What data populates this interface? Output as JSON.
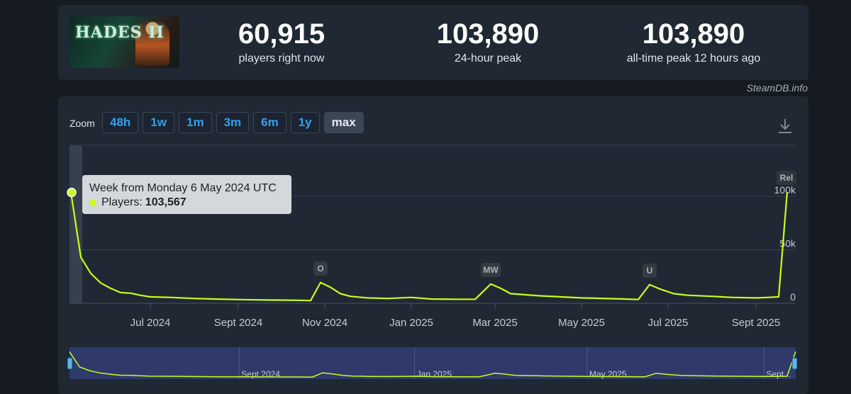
{
  "game": {
    "title": "HADES II"
  },
  "stats": [
    {
      "value": "60,915",
      "label": "players right now"
    },
    {
      "value": "103,890",
      "label": "24-hour peak"
    },
    {
      "value": "103,890",
      "label": "all-time peak 12 hours ago"
    }
  ],
  "watermark": "SteamDB.info",
  "zoom": {
    "label": "Zoom",
    "buttons": [
      "48h",
      "1w",
      "1m",
      "3m",
      "6m",
      "1y",
      "max"
    ],
    "active": "max"
  },
  "colors": {
    "line": "#c6ff1c",
    "accent": "#30a2f0",
    "navigator_bg": "#2f3a6b",
    "event_flag": "#353b40"
  },
  "tooltip": {
    "title": "Week from Monday 6 May 2024 UTC",
    "series_label": "Players:",
    "value": "103,567"
  },
  "chart_data": {
    "type": "line",
    "title": "",
    "xlabel": "",
    "ylabel": "",
    "ylim": [
      0,
      140000
    ],
    "y_ticks": [
      {
        "value": 0,
        "label": "0"
      },
      {
        "value": 50000,
        "label": "50k"
      },
      {
        "value": 100000,
        "label": "100k"
      }
    ],
    "x_ticks": [
      {
        "date": "2024-07-01",
        "label": "Jul 2024"
      },
      {
        "date": "2024-09-01",
        "label": "Sept 2024"
      },
      {
        "date": "2024-11-01",
        "label": "Nov 2024"
      },
      {
        "date": "2025-01-01",
        "label": "Jan 2025"
      },
      {
        "date": "2025-03-01",
        "label": "Mar 2025"
      },
      {
        "date": "2025-05-01",
        "label": "May 2025"
      },
      {
        "date": "2025-07-01",
        "label": "Jul 2025"
      },
      {
        "date": "2025-09-01",
        "label": "Sept 2025"
      }
    ],
    "grid": true,
    "series": [
      {
        "values": [
          [
            "2024-05-06",
            103567
          ],
          [
            "2024-05-13",
            43000
          ],
          [
            "2024-05-20",
            28000
          ],
          [
            "2024-05-27",
            19000
          ],
          [
            "2024-06-03",
            14000
          ],
          [
            "2024-06-10",
            10000
          ],
          [
            "2024-06-17",
            9500
          ],
          [
            "2024-06-24",
            7500
          ],
          [
            "2024-07-01",
            6000
          ],
          [
            "2024-07-15",
            5500
          ],
          [
            "2024-08-01",
            4500
          ],
          [
            "2024-08-15",
            4000
          ],
          [
            "2024-09-01",
            3500
          ],
          [
            "2024-09-15",
            3200
          ],
          [
            "2024-10-01",
            3000
          ],
          [
            "2024-10-15",
            2800
          ],
          [
            "2024-10-22",
            2500
          ],
          [
            "2024-10-29",
            19500
          ],
          [
            "2024-11-05",
            15000
          ],
          [
            "2024-11-12",
            9000
          ],
          [
            "2024-11-19",
            6500
          ],
          [
            "2024-12-01",
            5000
          ],
          [
            "2024-12-15",
            4500
          ],
          [
            "2025-01-01",
            5500
          ],
          [
            "2025-01-15",
            4000
          ],
          [
            "2025-02-01",
            3800
          ],
          [
            "2025-02-15",
            3800
          ],
          [
            "2025-02-26",
            18000
          ],
          [
            "2025-03-05",
            14000
          ],
          [
            "2025-03-12",
            9000
          ],
          [
            "2025-04-01",
            7000
          ],
          [
            "2025-05-01",
            5000
          ],
          [
            "2025-06-01",
            4000
          ],
          [
            "2025-06-10",
            3500
          ],
          [
            "2025-06-18",
            17500
          ],
          [
            "2025-06-25",
            13500
          ],
          [
            "2025-07-05",
            9000
          ],
          [
            "2025-07-15",
            7500
          ],
          [
            "2025-08-01",
            6500
          ],
          [
            "2025-08-15",
            5500
          ],
          [
            "2025-09-01",
            5000
          ],
          [
            "2025-09-10",
            5500
          ],
          [
            "2025-09-17",
            6000
          ],
          [
            "2025-09-23",
            103890
          ]
        ]
      }
    ],
    "events": [
      {
        "date": "2024-10-29",
        "label": "O"
      },
      {
        "date": "2025-02-26",
        "label": "MW"
      },
      {
        "date": "2025-06-18",
        "label": "U"
      },
      {
        "date": "2025-09-25",
        "label": "Rel"
      }
    ],
    "navigator": {
      "tick_labels": [
        "Sept 2024",
        "Jan 2025",
        "May 2025",
        "Sept..."
      ]
    },
    "highlighted_point": {
      "date": "2024-05-06",
      "value": 103567
    }
  }
}
